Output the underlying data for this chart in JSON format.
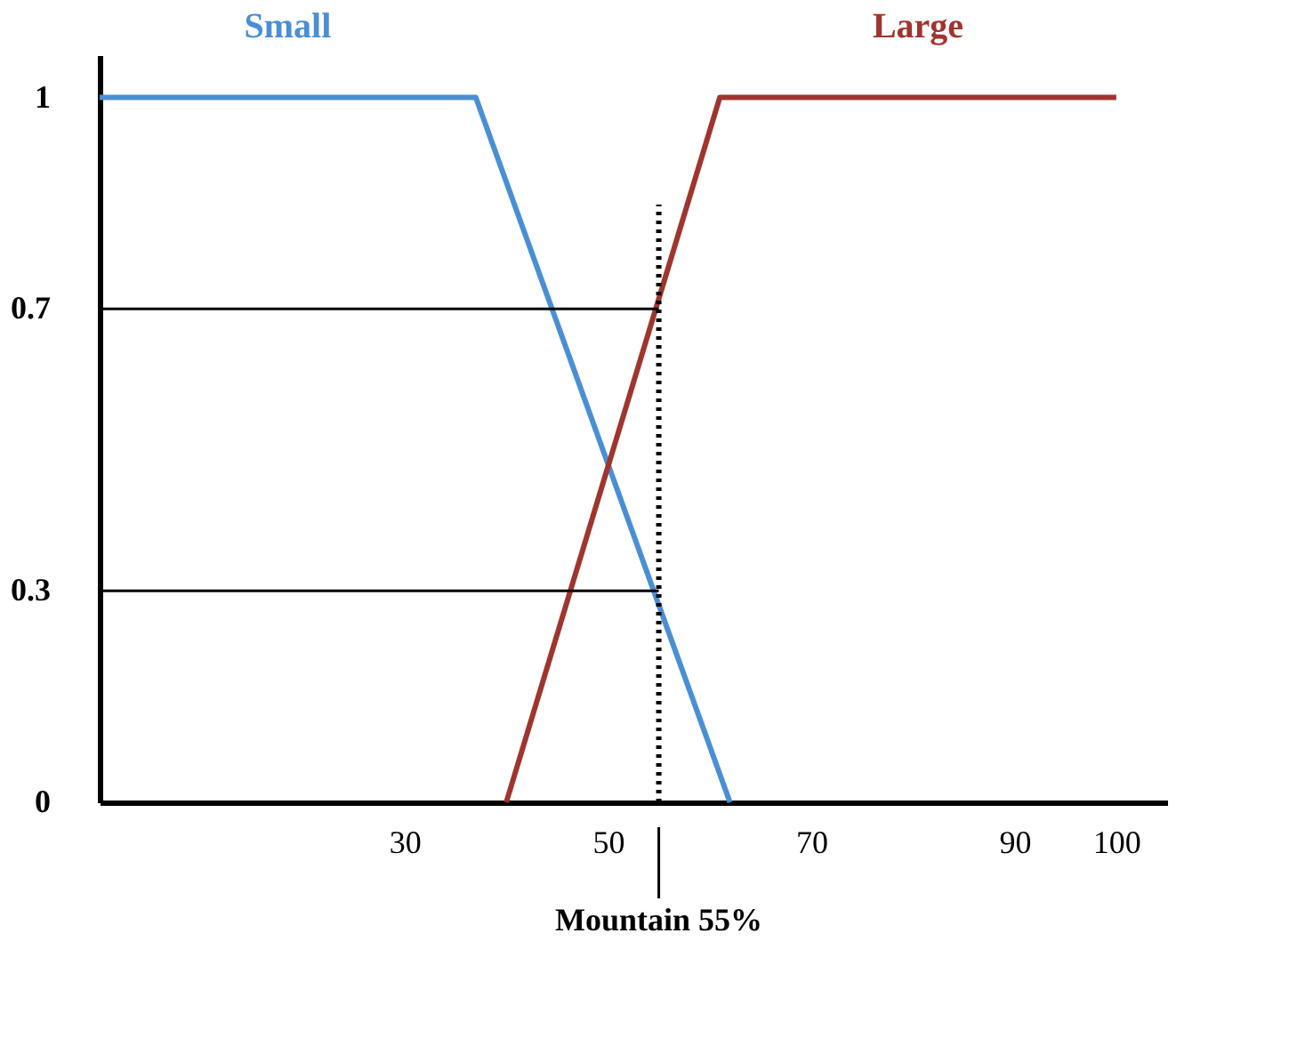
{
  "chart_data": {
    "type": "line",
    "xlim": [
      0,
      105
    ],
    "ylim": [
      0,
      1.06
    ],
    "xticks": [
      30,
      50,
      70,
      90,
      100
    ],
    "yticks": [
      {
        "value": 0,
        "label": "0"
      },
      0.3,
      0.7,
      {
        "value": 1,
        "label": "1"
      }
    ],
    "grid": false,
    "line_style": "solid",
    "marker": "none",
    "series": [
      {
        "name": "Small",
        "color": "#4a8fd4",
        "x": [
          0,
          37,
          62
        ],
        "values": [
          1,
          1,
          0
        ]
      },
      {
        "name": "Large",
        "color": "#a0342e",
        "x": [
          40,
          61,
          100
        ],
        "values": [
          0,
          1,
          1
        ]
      }
    ],
    "ref_lines": [
      {
        "axis": "x",
        "value": 55,
        "label": "Mountain 55%",
        "color": "#000000",
        "line_style": "dotted"
      },
      {
        "axis": "y",
        "value": 0.7,
        "label": null,
        "color": "#000000",
        "line_style": "solid"
      },
      {
        "axis": "y",
        "value": 0.3,
        "label": null,
        "color": "#000000",
        "line_style": "solid"
      }
    ]
  }
}
